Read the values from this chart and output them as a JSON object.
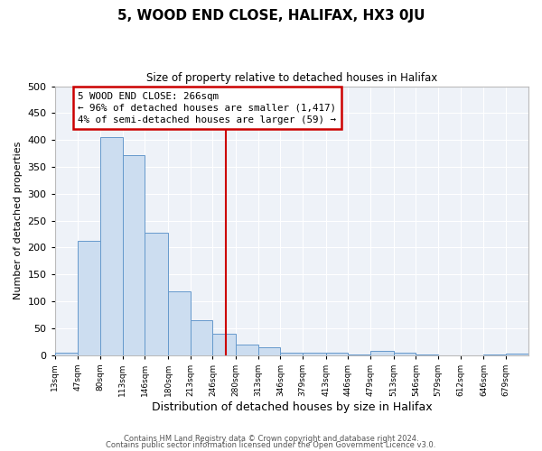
{
  "title": "5, WOOD END CLOSE, HALIFAX, HX3 0JU",
  "subtitle": "Size of property relative to detached houses in Halifax",
  "xlabel": "Distribution of detached houses by size in Halifax",
  "ylabel": "Number of detached properties",
  "bar_color": "#ccddf0",
  "bar_edge_color": "#6699cc",
  "background_color": "#eef2f8",
  "fig_background": "#ffffff",
  "grid_color": "#ffffff",
  "vline_x": 266,
  "vline_color": "#cc0000",
  "bin_edges": [
    13,
    47,
    80,
    113,
    146,
    180,
    213,
    246,
    280,
    313,
    346,
    379,
    413,
    446,
    479,
    513,
    546,
    579,
    612,
    646,
    679,
    712
  ],
  "bin_counts": [
    5,
    213,
    405,
    372,
    228,
    118,
    65,
    40,
    20,
    14,
    5,
    4,
    4,
    1,
    8,
    4,
    1,
    0,
    0,
    1,
    2
  ],
  "tick_labels": [
    "13sqm",
    "47sqm",
    "80sqm",
    "113sqm",
    "146sqm",
    "180sqm",
    "213sqm",
    "246sqm",
    "280sqm",
    "313sqm",
    "346sqm",
    "379sqm",
    "413sqm",
    "446sqm",
    "479sqm",
    "513sqm",
    "546sqm",
    "579sqm",
    "612sqm",
    "646sqm",
    "679sqm"
  ],
  "ylim": [
    0,
    500
  ],
  "yticks": [
    0,
    50,
    100,
    150,
    200,
    250,
    300,
    350,
    400,
    450,
    500
  ],
  "annotation_title": "5 WOOD END CLOSE: 266sqm",
  "annotation_line1": "← 96% of detached houses are smaller (1,417)",
  "annotation_line2": "4% of semi-detached houses are larger (59) →",
  "annotation_box_color": "#cc0000",
  "footnote1": "Contains HM Land Registry data © Crown copyright and database right 2024.",
  "footnote2": "Contains public sector information licensed under the Open Government Licence v3.0."
}
